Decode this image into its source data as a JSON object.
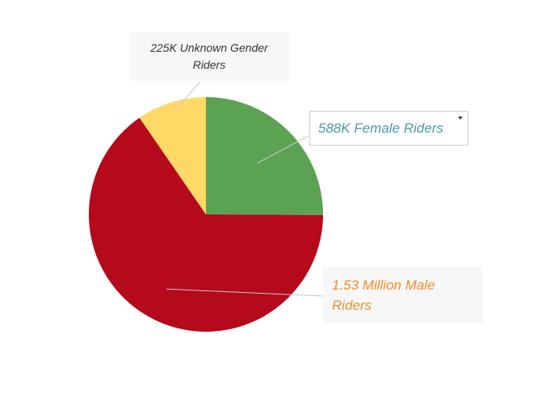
{
  "colors": {
    "female": "#5ba352",
    "male": "#b5091c",
    "unknown": "#ffd966",
    "leader": "#c8c8c8"
  },
  "chart_data": {
    "type": "pie",
    "title": "",
    "slices": [
      {
        "name": "Female",
        "value": 588000,
        "color": "#5ba352",
        "label": "588K Female Riders"
      },
      {
        "name": "Male",
        "value": 1530000,
        "color": "#b5091c",
        "label": "1.53 Million Male Riders"
      },
      {
        "name": "Unknown Gender",
        "value": 225000,
        "color": "#ffd966",
        "label": "225K Unknown Gender Riders"
      }
    ],
    "start_angle": "12 o'clock",
    "direction": "clockwise",
    "legend": "none"
  },
  "labels": {
    "unknown_line1": "225K Unknown Gender",
    "unknown_line2": "Riders",
    "female": "588K Female Riders",
    "male_line1": "1.53 Million Male",
    "male_line2": "Riders"
  }
}
